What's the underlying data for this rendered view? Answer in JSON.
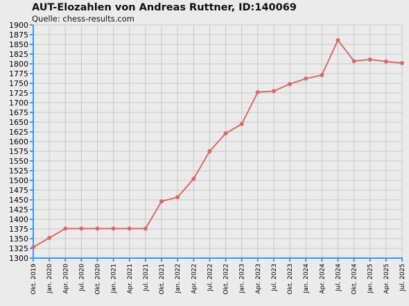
{
  "title": "AUT-Elozahlen von Andreas Ruttner, ID:140069",
  "subtitle": "Quelle: chess-results.com",
  "colors": {
    "line": "#d96a6a",
    "axis": "#3399ff",
    "grid": "#c8c8c8",
    "background": "#ebebeb"
  },
  "chart_data": {
    "type": "line",
    "title": "AUT-Elozahlen von Andreas Ruttner, ID:140069",
    "subtitle": "Quelle: chess-results.com",
    "xlabel": "",
    "ylabel": "",
    "ylim": [
      1300,
      1900
    ],
    "ytick_step": 25,
    "grid": true,
    "categories": [
      "Okt. 2019",
      "Jan. 2020",
      "Apr. 2020",
      "Jul. 2020",
      "Okt. 2020",
      "Jan. 2021",
      "Apr. 2021",
      "Jul. 2021",
      "Okt. 2021",
      "Jan. 2022",
      "Apr. 2022",
      "Jul. 2022",
      "Okt. 2022",
      "Jan. 2023",
      "Apr. 2023",
      "Jul. 2023",
      "Okt. 2023",
      "Jan. 2024",
      "Apr. 2024",
      "Jul. 2024",
      "Okt. 2024",
      "Jan. 2025",
      "Apr. 2025",
      "Jul. 2025"
    ],
    "series": [
      {
        "values": [
          1328,
          1352,
          1376,
          1376,
          1376,
          1376,
          1376,
          1376,
          1446,
          1457,
          1504,
          1575,
          1621,
          1645,
          1727,
          1730,
          1748,
          1762,
          1771,
          1861,
          1807,
          1811,
          1806,
          1802
        ]
      }
    ]
  }
}
